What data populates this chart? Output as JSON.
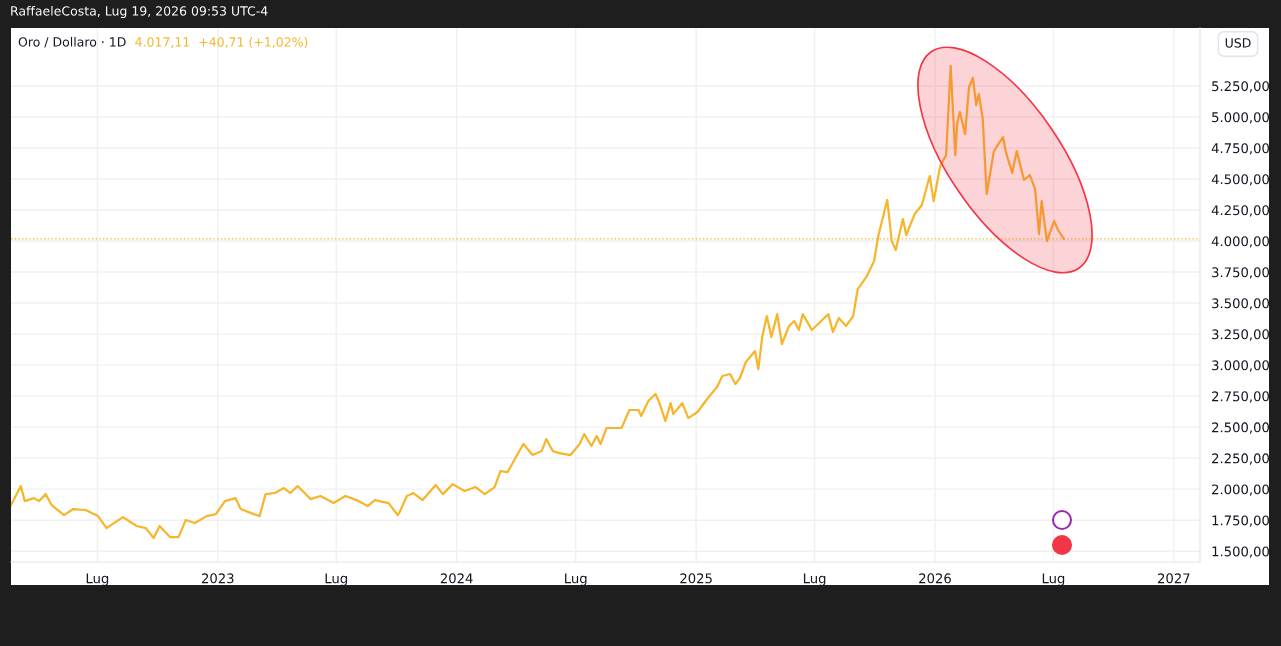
{
  "chart_data": {
    "type": "line",
    "title": "Oro / Dollaro · 1D",
    "subtitle": "4.017,11  +40,71 (+1,02%)",
    "ylabel": "USD",
    "annotations": [
      "RaffaeleCosta, Lug 19, 2026 09:53 UTC-4"
    ],
    "x": [
      "2022-02-19",
      "2022-03-06",
      "2022-03-12",
      "2022-03-26",
      "2022-04-03",
      "2022-04-13",
      "2022-04-22",
      "2022-05-11",
      "2022-05-25",
      "2022-06-13",
      "2022-07-02",
      "2022-07-15",
      "2022-08-09",
      "2022-08-30",
      "2022-09-13",
      "2022-09-25",
      "2022-10-04",
      "2022-10-20",
      "2022-11-02",
      "2022-11-13",
      "2022-11-27",
      "2022-12-15",
      "2022-12-29",
      "2023-01-12",
      "2023-01-28",
      "2023-02-05",
      "2023-02-25",
      "2023-03-06",
      "2023-03-15",
      "2023-03-29",
      "2023-04-12",
      "2023-04-22",
      "2023-05-03",
      "2023-05-23",
      "2023-06-07",
      "2023-06-27",
      "2023-07-15",
      "2023-08-01",
      "2023-08-18",
      "2023-08-29",
      "2023-09-19",
      "2023-10-03",
      "2023-10-06",
      "2023-10-17",
      "2023-10-27",
      "2023-11-10",
      "2023-11-30",
      "2023-12-11",
      "2023-12-26",
      "2024-01-13",
      "2024-01-30",
      "2024-02-13",
      "2024-02-28",
      "2024-03-08",
      "2024-03-19",
      "2024-03-30",
      "2024-04-12",
      "2024-04-26",
      "2024-05-10",
      "2024-05-17",
      "2024-05-27",
      "2024-06-06",
      "2024-06-23",
      "2024-07-07",
      "2024-07-14",
      "2024-07-25",
      "2024-08-02",
      "2024-08-08",
      "2024-08-17",
      "2024-08-29",
      "2024-09-09",
      "2024-09-21",
      "2024-10-05",
      "2024-10-09",
      "2024-10-20",
      "2024-10-31",
      "2024-11-06",
      "2024-11-15",
      "2024-11-23",
      "2024-11-27",
      "2024-12-11",
      "2024-12-20",
      "2025-01-03",
      "2025-01-19",
      "2025-02-02",
      "2025-02-10",
      "2025-02-22",
      "2025-03-02",
      "2025-03-09",
      "2025-03-18",
      "2025-04-01",
      "2025-04-06",
      "2025-04-12",
      "2025-04-19",
      "2025-04-26",
      "2025-05-05",
      "2025-05-12",
      "2025-05-23",
      "2025-05-31",
      "2025-06-07",
      "2025-06-13",
      "2025-06-27",
      "2025-07-08",
      "2025-07-22",
      "2025-07-29",
      "2025-08-07",
      "2025-08-18",
      "2025-08-29",
      "2025-09-05",
      "2025-09-19",
      "2025-09-30",
      "2025-10-06",
      "2025-10-20",
      "2025-10-27",
      "2025-11-02",
      "2025-11-13",
      "2025-11-18",
      "2025-12-01",
      "2025-12-12",
      "2025-12-24",
      "2025-12-30",
      "2026-01-09",
      "2026-01-18",
      "2026-01-25",
      "2026-02-01",
      "2026-02-04",
      "2026-02-08",
      "2026-02-16",
      "2026-02-22",
      "2026-02-28",
      "2026-03-05",
      "2026-03-09",
      "2026-03-15",
      "2026-03-21",
      "2026-04-01",
      "2026-04-15",
      "2026-04-19",
      "2026-04-29",
      "2026-05-06",
      "2026-05-17",
      "2026-05-26",
      "2026-06-03",
      "2026-06-09",
      "2026-06-13",
      "2026-06-21",
      "2026-07-02",
      "2026-07-08",
      "2026-07-17"
    ],
    "series": [
      {
        "color": "#f7b52c",
        "values": [
          1872,
          2025,
          1904,
          1928,
          1904,
          1960,
          1872,
          1791,
          1840,
          1832,
          1783,
          1686,
          1775,
          1703,
          1686,
          1606,
          1703,
          1614,
          1614,
          1751,
          1727,
          1783,
          1799,
          1904,
          1928,
          1840,
          1799,
          1783,
          1960,
          1969,
          2009,
          1969,
          2025,
          1920,
          1945,
          1888,
          1945,
          1912,
          1864,
          1912,
          1888,
          1791,
          1816,
          1945,
          1969,
          1912,
          2033,
          1960,
          2041,
          1985,
          2017,
          1960,
          2017,
          2146,
          2138,
          2243,
          2364,
          2275,
          2307,
          2404,
          2307,
          2291,
          2275,
          2364,
          2444,
          2348,
          2428,
          2364,
          2493,
          2493,
          2493,
          2638,
          2638,
          2590,
          2710,
          2767,
          2694,
          2549,
          2694,
          2605,
          2694,
          2573,
          2622,
          2735,
          2823,
          2912,
          2928,
          2847,
          2896,
          3025,
          3113,
          2968,
          3226,
          3395,
          3226,
          3411,
          3170,
          3315,
          3355,
          3283,
          3411,
          3283,
          3339,
          3411,
          3267,
          3379,
          3315,
          3395,
          3613,
          3718,
          3839,
          4032,
          4331,
          4000,
          3927,
          4177,
          4048,
          4218,
          4290,
          4524,
          4322,
          4605,
          4693,
          5411,
          4693,
          4951,
          5040,
          4862,
          5241,
          5314,
          5096,
          5185,
          4983,
          4379,
          4725,
          4838,
          4725,
          4548,
          4725,
          4492,
          4532,
          4419,
          4056,
          4322,
          4000,
          4161,
          4089,
          4017
        ]
      }
    ],
    "xlim": [
      "2022-02-19",
      "2027-02-10"
    ],
    "ylim": [
      1413,
      5717
    ],
    "xticks": [
      {
        "value": "2022-07-01",
        "label": "Lug"
      },
      {
        "value": "2023-01-01",
        "label": "2023"
      },
      {
        "value": "2023-07-01",
        "label": "Lug"
      },
      {
        "value": "2024-01-01",
        "label": "2024"
      },
      {
        "value": "2024-07-01",
        "label": "Lug"
      },
      {
        "value": "2025-01-01",
        "label": "2025"
      },
      {
        "value": "2025-07-01",
        "label": "Lug"
      },
      {
        "value": "2026-01-01",
        "label": "2026"
      },
      {
        "value": "2026-07-01",
        "label": "Lug"
      },
      {
        "value": "2027-01-01",
        "label": "2027"
      }
    ],
    "yticks": [
      {
        "value": 1500,
        "label": "1.500,00"
      },
      {
        "value": 1750,
        "label": "1.750,00"
      },
      {
        "value": 2000,
        "label": "2.000,00"
      },
      {
        "value": 2250,
        "label": "2.250,00"
      },
      {
        "value": 2500,
        "label": "2.500,00"
      },
      {
        "value": 2750,
        "label": "2.750,00"
      },
      {
        "value": 3000,
        "label": "3.000,00"
      },
      {
        "value": 3250,
        "label": "3.250,00"
      },
      {
        "value": 3500,
        "label": "3.500,00"
      },
      {
        "value": 3750,
        "label": "3.750,00"
      },
      {
        "value": 4000,
        "label": "4.000,00"
      },
      {
        "value": 4250,
        "label": "4.250,00"
      },
      {
        "value": 4500,
        "label": "4.500,00"
      },
      {
        "value": 4750,
        "label": "4.750,00"
      },
      {
        "value": 5000,
        "label": "5.000,00"
      },
      {
        "value": 5250,
        "label": "5.250,00"
      }
    ],
    "grid": true,
    "line_style": "solid",
    "ref_lines": [
      {
        "axis": "y",
        "value": 4017,
        "color": "#f7b52c",
        "line_style": "dotted"
      }
    ]
  }
}
